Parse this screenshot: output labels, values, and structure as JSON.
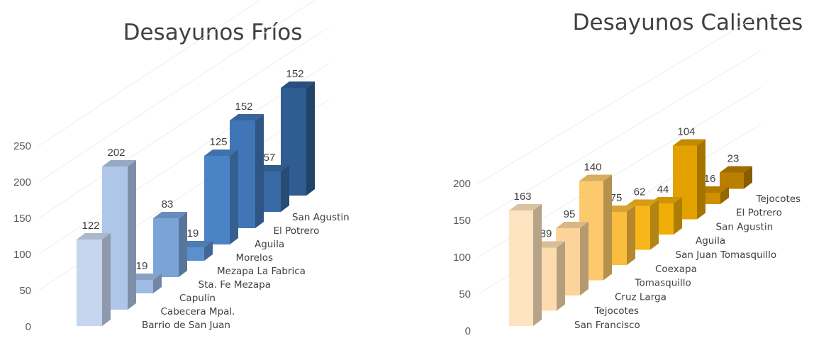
{
  "chart_data": [
    {
      "type": "bar",
      "title": "Desayunos Fríos",
      "yticks": [
        "0",
        "50",
        "100",
        "150",
        "200",
        "250"
      ],
      "categories": [
        "Barrio de San Juan",
        "Cabecera Mpal.",
        "Capulin",
        "Sta. Fe Mezapa",
        "Mezapa La Fabrica",
        "Morelos",
        "Aguila",
        "El Potrero",
        "San Agustin"
      ],
      "values": [
        122,
        202,
        19,
        83,
        19,
        125,
        152,
        57,
        152
      ],
      "labels": [
        "122",
        "202",
        "19",
        "83",
        "19",
        "125",
        "152",
        "57",
        "152"
      ],
      "colors": [
        "#c5d6ee",
        "#aec6e8",
        "#9dbbe3",
        "#7aa4d8",
        "#5b8fcd",
        "#4a84c6",
        "#4076b7",
        "#386aa4",
        "#2f5d91"
      ]
    },
    {
      "type": "bar",
      "title": "Desayunos Calientes",
      "yticks": [
        "0",
        "50",
        "100",
        "150",
        "200"
      ],
      "categories": [
        "San Francisco",
        "Tejocotes",
        "Cruz Larga",
        "Tomasquillo",
        "Coexapa",
        "San Juan Tomasquillo",
        "Aguila",
        "San Agustin",
        "El Potrero",
        "Tejocotes"
      ],
      "values": [
        163,
        89,
        95,
        140,
        75,
        62,
        44,
        104,
        16,
        23
      ],
      "labels": [
        "163",
        "89",
        "95",
        "140",
        "75",
        "62",
        "44",
        "104",
        "16",
        "23"
      ],
      "colors": [
        "#fde3bf",
        "#fcdcae",
        "#fcd49b",
        "#fcc96d",
        "#fbbd3e",
        "#f8b61a",
        "#f0ad05",
        "#e3a100",
        "#d08f00",
        "#bb7f00"
      ]
    }
  ]
}
